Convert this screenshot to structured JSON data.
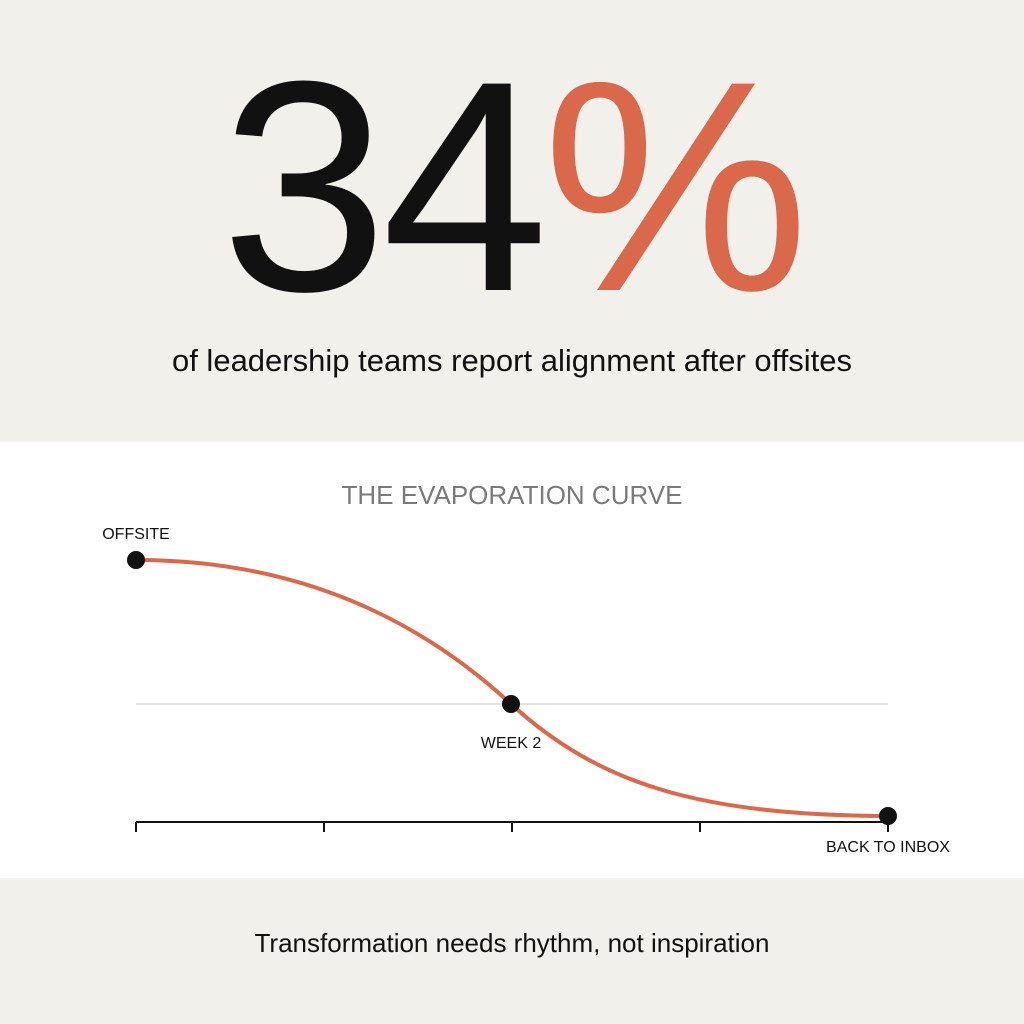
{
  "headline": {
    "number": "34",
    "symbol": "%",
    "caption": "of leadership teams report alignment after offsites"
  },
  "curve": {
    "title": "THE EVAPORATION CURVE",
    "points": [
      {
        "label": "OFFSITE"
      },
      {
        "label": "WEEK 2"
      },
      {
        "label": "BACK TO INBOX"
      }
    ]
  },
  "footer": {
    "text": "Transformation needs rhythm, not inspiration"
  }
}
